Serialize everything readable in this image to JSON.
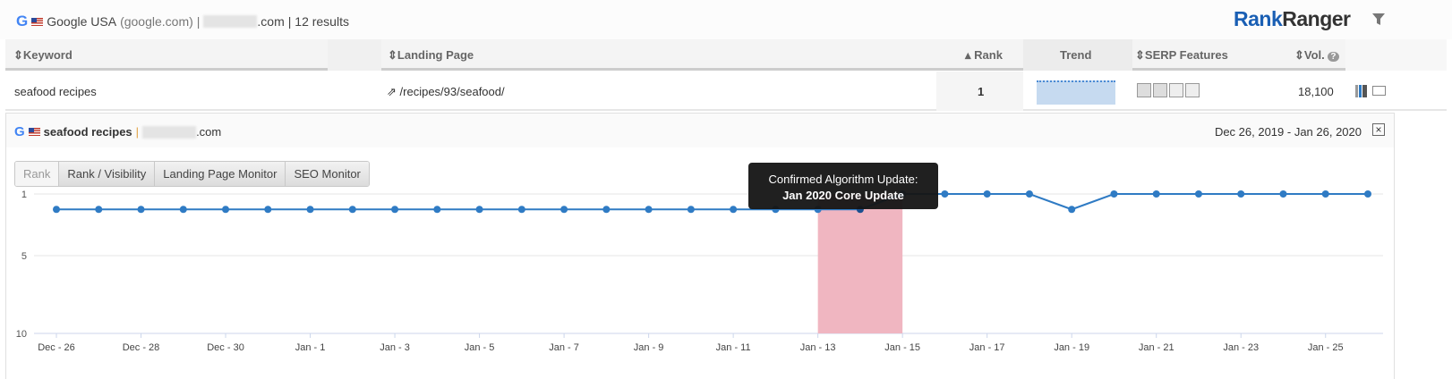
{
  "header": {
    "engine": "Google USA",
    "engine_domain": "(google.com)",
    "domain_suffix": ".com",
    "results": "| 12 results",
    "logo_a": "Rank",
    "logo_b": "Ranger"
  },
  "table": {
    "columns": [
      "Keyword",
      "Landing Page",
      "Rank",
      "Trend",
      "SERP Features",
      "Vol."
    ],
    "row": {
      "keyword": "seafood recipes",
      "landing_page": "/recipes/93/seafood/",
      "rank": "1",
      "volume": "18,100"
    }
  },
  "panel": {
    "keyword": "seafood recipes",
    "domain_suffix": ".com",
    "date_range": "Dec 26, 2019 - Jan 26, 2020",
    "tabs": [
      "Rank",
      "Rank / Visibility",
      "Landing Page Monitor",
      "SEO Monitor"
    ]
  },
  "tooltip": {
    "line1": "Confirmed Algorithm Update:",
    "line2": "Jan 2020 Core Update"
  },
  "colors": {
    "line": "#2f7bc4",
    "band": "#f0b6c1",
    "logo_blue": "#1a5fb4"
  },
  "chart_data": {
    "type": "line",
    "ylim": [
      1,
      10
    ],
    "y_reversed": true,
    "yticks": [
      1,
      5,
      10
    ],
    "x": [
      "Dec 26",
      "Dec 27",
      "Dec 28",
      "Dec 29",
      "Dec 30",
      "Dec 31",
      "Jan 1",
      "Jan 2",
      "Jan 3",
      "Jan 4",
      "Jan 5",
      "Jan 6",
      "Jan 7",
      "Jan 8",
      "Jan 9",
      "Jan 10",
      "Jan 11",
      "Jan 12",
      "Jan 13",
      "Jan 14",
      "Jan 15",
      "Jan 16",
      "Jan 17",
      "Jan 18",
      "Jan 19",
      "Jan 20",
      "Jan 21",
      "Jan 22",
      "Jan 23",
      "Jan 24",
      "Jan 25",
      "Jan 26"
    ],
    "values": [
      2,
      2,
      2,
      2,
      2,
      2,
      2,
      2,
      2,
      2,
      2,
      2,
      2,
      2,
      2,
      2,
      2,
      2,
      2,
      2,
      1,
      1,
      1,
      1,
      2,
      1,
      1,
      1,
      1,
      1,
      1,
      1
    ],
    "xtick_labels": [
      "Dec - 26",
      "Dec - 28",
      "Dec - 30",
      "Jan - 1",
      "Jan - 3",
      "Jan - 5",
      "Jan - 7",
      "Jan - 9",
      "Jan - 11",
      "Jan - 13",
      "Jan - 15",
      "Jan - 17",
      "Jan - 19",
      "Jan - 21",
      "Jan - 23",
      "Jan - 25"
    ],
    "highlight_band": [
      "Jan 13",
      "Jan 15"
    ],
    "grid": true
  }
}
